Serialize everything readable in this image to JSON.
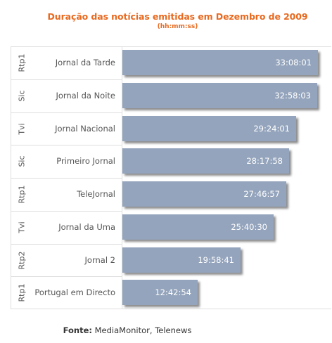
{
  "chart_data": {
    "type": "bar",
    "orientation": "horizontal",
    "title": "Duração das notícias emitidas em Dezembro de 2009",
    "subtitle": "(hh:mm:ss)",
    "rows": [
      {
        "channel": "Rtp1",
        "program": "Jornal da Tarde",
        "value": "33:08:01",
        "seconds": 119281
      },
      {
        "channel": "Sic",
        "program": "Jornal da Noite",
        "value": "32:58:03",
        "seconds": 118683
      },
      {
        "channel": "Tvi",
        "program": "Jornal Nacional",
        "value": "29:24:01",
        "seconds": 105841
      },
      {
        "channel": "Sic",
        "program": "Primeiro Jornal",
        "value": "28:17:58",
        "seconds": 101878
      },
      {
        "channel": "Rtp1",
        "program": "TeleJornal",
        "value": "27:46:57",
        "seconds": 100017
      },
      {
        "channel": "Tvi",
        "program": "Jornal da Uma",
        "value": "25:40:30",
        "seconds": 92430
      },
      {
        "channel": "Rtp2",
        "program": "Jornal 2",
        "value": "19:58:41",
        "seconds": 71921
      },
      {
        "channel": "Rtp1",
        "program": "Portugal em Directo",
        "value": "12:42:54",
        "seconds": 45774
      }
    ],
    "bar_color": "#94a4bc",
    "title_color": "#e8691f"
  },
  "source": {
    "prefix": "Fonte:",
    "text": " MediaMonitor, Telenews"
  }
}
